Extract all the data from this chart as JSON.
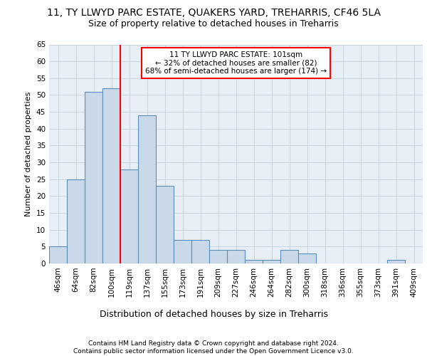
{
  "title": "11, TY LLWYD PARC ESTATE, QUAKERS YARD, TREHARRIS, CF46 5LA",
  "subtitle": "Size of property relative to detached houses in Treharris",
  "xlabel": "Distribution of detached houses by size in Treharris",
  "ylabel": "Number of detached properties",
  "categories": [
    "46sqm",
    "64sqm",
    "82sqm",
    "100sqm",
    "119sqm",
    "137sqm",
    "155sqm",
    "173sqm",
    "191sqm",
    "209sqm",
    "227sqm",
    "246sqm",
    "264sqm",
    "282sqm",
    "300sqm",
    "318sqm",
    "336sqm",
    "355sqm",
    "373sqm",
    "391sqm",
    "409sqm"
  ],
  "values": [
    5,
    25,
    51,
    52,
    28,
    44,
    23,
    7,
    7,
    4,
    4,
    1,
    1,
    4,
    3,
    0,
    0,
    0,
    0,
    1,
    0
  ],
  "bar_color": "#c9d9ea",
  "bar_edge_color": "#5b8db8",
  "grid_color": "#c8d4e0",
  "background_color": "#e8eef5",
  "annotation_text": "11 TY LLWYD PARC ESTATE: 101sqm\n← 32% of detached houses are smaller (82)\n68% of semi-detached houses are larger (174) →",
  "annotation_box_color": "white",
  "annotation_box_edge_color": "red",
  "vline_x": 3.5,
  "vline_color": "red",
  "ylim": [
    0,
    65
  ],
  "yticks": [
    0,
    5,
    10,
    15,
    20,
    25,
    30,
    35,
    40,
    45,
    50,
    55,
    60,
    65
  ],
  "footer": "Contains HM Land Registry data © Crown copyright and database right 2024.\nContains public sector information licensed under the Open Government Licence v3.0.",
  "title_fontsize": 10,
  "subtitle_fontsize": 9,
  "xlabel_fontsize": 9,
  "ylabel_fontsize": 8,
  "tick_fontsize": 7.5,
  "annotation_fontsize": 7.5,
  "footer_fontsize": 6.5
}
